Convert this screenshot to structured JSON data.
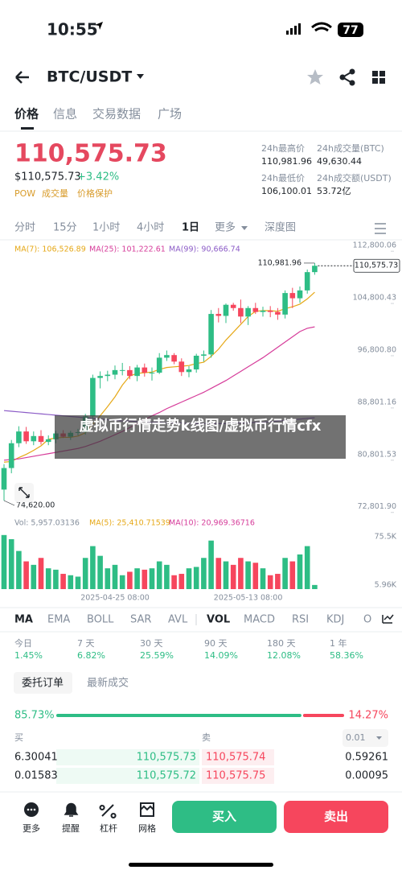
{
  "status": {
    "time": "10:55",
    "battery": "77"
  },
  "header": {
    "title": "BTC/USDT"
  },
  "tabs": [
    "价格",
    "信息",
    "交易数据",
    "广场"
  ],
  "ticker": {
    "price": "110,575.73",
    "usd_price": "$110,575.73",
    "change": "+3.42%",
    "tags": [
      "POW",
      "成交量",
      "价格保护"
    ]
  },
  "stats": [
    {
      "label": "24h最高价",
      "value": "110,981.96"
    },
    {
      "label": "24h成交量(BTC)",
      "value": "49,630.44"
    },
    {
      "label": "24h最低价",
      "value": "106,100.01"
    },
    {
      "label": "24h成交额(USDT)",
      "value": "53.72亿"
    }
  ],
  "timeframes": [
    "分时",
    "15分",
    "1小时",
    "4小时",
    "1日",
    "更多",
    "深度图"
  ],
  "chart_data": {
    "type": "candlestick",
    "categories": [
      null,
      null,
      null,
      null,
      null,
      null,
      null,
      null,
      null,
      null,
      null,
      null,
      null,
      null,
      null,
      "2025-04-25 08:00",
      null,
      null,
      null,
      null,
      null,
      null,
      null,
      null,
      null,
      null,
      null,
      null,
      null,
      null,
      null,
      null,
      null,
      "2025-05-13 08:00",
      null,
      null,
      null,
      null,
      null,
      null,
      null,
      null,
      null
    ],
    "open": [
      76300,
      79600,
      83400,
      85200,
      83700,
      84500,
      83600,
      84000,
      84900,
      84400,
      85000,
      85100,
      87500,
      93400,
      93700,
      93900,
      94600,
      94600,
      93700,
      95000,
      94200,
      94200,
      96500,
      96900,
      95900,
      94300,
      94700,
      96800,
      97000,
      103200,
      102900,
      104600,
      104100,
      102800,
      104100,
      103500,
      103700,
      103500,
      103100,
      106400,
      105600,
      106800,
      109600
    ],
    "high": [
      80200,
      83900,
      86000,
      85900,
      85200,
      85400,
      84600,
      85300,
      85400,
      85300,
      85600,
      87900,
      93900,
      94400,
      94500,
      95300,
      95700,
      95200,
      95400,
      95600,
      95000,
      97200,
      97600,
      97200,
      96400,
      95200,
      97100,
      97600,
      103800,
      104100,
      104800,
      104900,
      105400,
      104400,
      104900,
      104300,
      104400,
      104100,
      106800,
      107200,
      107400,
      110000,
      110981.96
    ],
    "low": [
      74620,
      78800,
      82800,
      83300,
      83100,
      83200,
      83100,
      83400,
      84200,
      83900,
      84600,
      84700,
      87100,
      91800,
      92900,
      93200,
      93800,
      93200,
      92900,
      93600,
      93000,
      94000,
      96000,
      95500,
      93700,
      93500,
      94200,
      95900,
      96500,
      101900,
      101800,
      103700,
      101800,
      101500,
      103200,
      102800,
      102700,
      102300,
      102500,
      104100,
      104900,
      106300,
      109200
    ],
    "close": [
      79600,
      83400,
      85200,
      83700,
      84500,
      83600,
      84000,
      84900,
      84400,
      85000,
      85100,
      87500,
      93400,
      93700,
      93900,
      94600,
      94600,
      93700,
      95000,
      94200,
      94200,
      96500,
      96900,
      95900,
      94300,
      94700,
      96800,
      97000,
      103200,
      102900,
      104600,
      104100,
      102800,
      104100,
      103500,
      103700,
      103500,
      103100,
      106400,
      105600,
      106800,
      109600,
      110575.73
    ],
    "series": [
      {
        "name": "MA(7): 106,526.89",
        "color": "#e6a817",
        "values": [
          80500,
          80600,
          81200,
          81700,
          82300,
          83000,
          84000,
          84200,
          84300,
          84300,
          84500,
          85000,
          86300,
          87600,
          89000,
          90500,
          92300,
          93700,
          94100,
          94200,
          94300,
          94700,
          95000,
          95100,
          95200,
          95300,
          95600,
          95800,
          96700,
          97800,
          99200,
          100400,
          101600,
          102800,
          103600,
          103700,
          103700,
          103600,
          104000,
          104300,
          104700,
          105500,
          106526.89
        ]
      },
      {
        "name": "MA(25): 101,222.61",
        "color": "#d63c9a",
        "values": [
          80800,
          80900,
          81000,
          81200,
          81400,
          81600,
          81800,
          82000,
          82200,
          82400,
          82600,
          82900,
          83300,
          83700,
          84200,
          84700,
          85200,
          85800,
          86400,
          87000,
          87600,
          88100,
          88700,
          89200,
          89700,
          90200,
          90700,
          91200,
          91800,
          92400,
          93000,
          93700,
          94400,
          95100,
          95800,
          96500,
          97300,
          98100,
          98900,
          99700,
          100500,
          101000,
          101222.61
        ]
      },
      {
        "name": "MA(99): 90,666.74",
        "color": "#8c5cc7",
        "values": [
          88400,
          88300,
          88200,
          88100,
          88000,
          87900,
          87800,
          87700,
          87600,
          87500,
          87400,
          87300,
          87200,
          87100,
          87000,
          86900,
          86800,
          86800,
          86700,
          86700,
          86600,
          86600,
          86500,
          86500,
          86500,
          86400,
          86400,
          86400,
          86400,
          86400,
          86400,
          86500,
          86500,
          86500,
          86600,
          86600,
          86700,
          86800,
          86900,
          87000,
          87100,
          87200,
          87300
        ]
      }
    ],
    "ylim": [
      72400,
      114300
    ],
    "yticks": [
      {
        "value": 112800.06,
        "label": "112,800.06"
      },
      {
        "value": 104800.43,
        "label": "104,800.43"
      },
      {
        "value": 96800.8,
        "label": "96,800.80"
      },
      {
        "value": 88801.16,
        "label": "88,801.16"
      },
      {
        "value": 80801.53,
        "label": "80,801.53"
      },
      {
        "value": 72801.9,
        "label": "72,801.90"
      }
    ],
    "last_price": {
      "value": 110575.73,
      "label": "110,575.73"
    },
    "high_label": {
      "value": 110981.96,
      "label": "110,981.96"
    },
    "low_label": {
      "value": 74620,
      "label": "74,620.00"
    },
    "volume": [
      78000,
      72000,
      55000,
      40000,
      35000,
      45000,
      30000,
      28000,
      22000,
      20000,
      18000,
      45000,
      62000,
      48000,
      30000,
      35000,
      20000,
      25000,
      30000,
      28000,
      30000,
      40000,
      35000,
      20000,
      22000,
      30000,
      32000,
      45000,
      70000,
      45000,
      40000,
      35000,
      45000,
      40000,
      38000,
      30000,
      20000,
      22000,
      45000,
      40000,
      50000,
      62000,
      5957.03136
    ],
    "volume_legend": [
      "Vol: 5,957.03136",
      "MA(5): 25,410.71539",
      "MA(10): 20,969.36716"
    ],
    "volume_ylim": [
      0,
      101000
    ],
    "volume_yticks": [
      {
        "value": 75500,
        "label": "75.5K"
      },
      {
        "value": 5960,
        "label": "5.96K"
      }
    ],
    "colors": {
      "up": "#2ebd85",
      "down": "#f6465d"
    }
  },
  "caption": "虚拟币行情走势k线图/虚拟币行情cfx",
  "indicators": [
    "MA",
    "EMA",
    "BOLL",
    "SAR",
    "AVL",
    "VOL",
    "MACD",
    "RSI",
    "KDJ",
    "O"
  ],
  "performance": [
    {
      "label": "今日",
      "value": "1.45%"
    },
    {
      "label": "7 天",
      "value": "6.82%"
    },
    {
      "label": "30 天",
      "value": "25.59%"
    },
    {
      "label": "90 天",
      "value": "14.09%"
    },
    {
      "label": "180 天",
      "value": "12.08%"
    },
    {
      "label": "1 年",
      "value": "58.36%"
    }
  ],
  "order_tabs": [
    "委托订单",
    "最新成交"
  ],
  "ratio": {
    "buy": 85.73,
    "buy_label": "85.73%",
    "sell": 14.27,
    "sell_label": "14.27%"
  },
  "orderbook": {
    "buy_header": "买",
    "sell_header": "卖",
    "precision": "0.01",
    "rows": [
      [
        "6.30041",
        "110,575.73",
        "110,575.74",
        "0.59261"
      ],
      [
        "0.01583",
        "110,575.72",
        "110,575.75",
        "0.00095"
      ]
    ]
  },
  "bottom_bar": {
    "items": [
      "更多",
      "提醒",
      "杠杆",
      "网格"
    ],
    "buy": "买入",
    "sell": "卖出"
  }
}
